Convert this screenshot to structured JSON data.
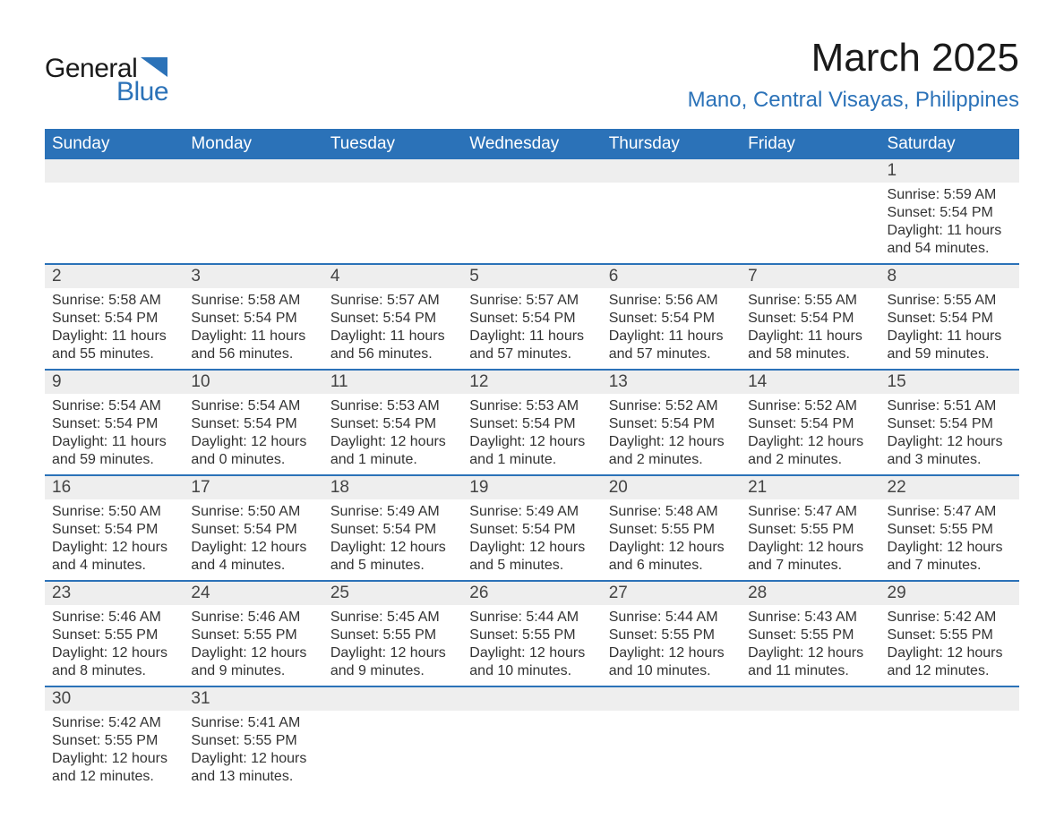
{
  "logo": {
    "text_general": "General",
    "text_blue": "Blue",
    "shape_color": "#2b72b8"
  },
  "title": "March 2025",
  "location": "Mano, Central Visayas, Philippines",
  "colors": {
    "header_bg": "#2b72b8",
    "header_text": "#ffffff",
    "daynum_bg": "#eeeeee",
    "border": "#2b72b8",
    "text": "#333333"
  },
  "weekdays": [
    "Sunday",
    "Monday",
    "Tuesday",
    "Wednesday",
    "Thursday",
    "Friday",
    "Saturday"
  ],
  "weeks": [
    [
      {
        "empty": true
      },
      {
        "empty": true
      },
      {
        "empty": true
      },
      {
        "empty": true
      },
      {
        "empty": true
      },
      {
        "empty": true
      },
      {
        "day": "1",
        "sunrise": "Sunrise: 5:59 AM",
        "sunset": "Sunset: 5:54 PM",
        "daylight1": "Daylight: 11 hours",
        "daylight2": "and 54 minutes."
      }
    ],
    [
      {
        "day": "2",
        "sunrise": "Sunrise: 5:58 AM",
        "sunset": "Sunset: 5:54 PM",
        "daylight1": "Daylight: 11 hours",
        "daylight2": "and 55 minutes."
      },
      {
        "day": "3",
        "sunrise": "Sunrise: 5:58 AM",
        "sunset": "Sunset: 5:54 PM",
        "daylight1": "Daylight: 11 hours",
        "daylight2": "and 56 minutes."
      },
      {
        "day": "4",
        "sunrise": "Sunrise: 5:57 AM",
        "sunset": "Sunset: 5:54 PM",
        "daylight1": "Daylight: 11 hours",
        "daylight2": "and 56 minutes."
      },
      {
        "day": "5",
        "sunrise": "Sunrise: 5:57 AM",
        "sunset": "Sunset: 5:54 PM",
        "daylight1": "Daylight: 11 hours",
        "daylight2": "and 57 minutes."
      },
      {
        "day": "6",
        "sunrise": "Sunrise: 5:56 AM",
        "sunset": "Sunset: 5:54 PM",
        "daylight1": "Daylight: 11 hours",
        "daylight2": "and 57 minutes."
      },
      {
        "day": "7",
        "sunrise": "Sunrise: 5:55 AM",
        "sunset": "Sunset: 5:54 PM",
        "daylight1": "Daylight: 11 hours",
        "daylight2": "and 58 minutes."
      },
      {
        "day": "8",
        "sunrise": "Sunrise: 5:55 AM",
        "sunset": "Sunset: 5:54 PM",
        "daylight1": "Daylight: 11 hours",
        "daylight2": "and 59 minutes."
      }
    ],
    [
      {
        "day": "9",
        "sunrise": "Sunrise: 5:54 AM",
        "sunset": "Sunset: 5:54 PM",
        "daylight1": "Daylight: 11 hours",
        "daylight2": "and 59 minutes."
      },
      {
        "day": "10",
        "sunrise": "Sunrise: 5:54 AM",
        "sunset": "Sunset: 5:54 PM",
        "daylight1": "Daylight: 12 hours",
        "daylight2": "and 0 minutes."
      },
      {
        "day": "11",
        "sunrise": "Sunrise: 5:53 AM",
        "sunset": "Sunset: 5:54 PM",
        "daylight1": "Daylight: 12 hours",
        "daylight2": "and 1 minute."
      },
      {
        "day": "12",
        "sunrise": "Sunrise: 5:53 AM",
        "sunset": "Sunset: 5:54 PM",
        "daylight1": "Daylight: 12 hours",
        "daylight2": "and 1 minute."
      },
      {
        "day": "13",
        "sunrise": "Sunrise: 5:52 AM",
        "sunset": "Sunset: 5:54 PM",
        "daylight1": "Daylight: 12 hours",
        "daylight2": "and 2 minutes."
      },
      {
        "day": "14",
        "sunrise": "Sunrise: 5:52 AM",
        "sunset": "Sunset: 5:54 PM",
        "daylight1": "Daylight: 12 hours",
        "daylight2": "and 2 minutes."
      },
      {
        "day": "15",
        "sunrise": "Sunrise: 5:51 AM",
        "sunset": "Sunset: 5:54 PM",
        "daylight1": "Daylight: 12 hours",
        "daylight2": "and 3 minutes."
      }
    ],
    [
      {
        "day": "16",
        "sunrise": "Sunrise: 5:50 AM",
        "sunset": "Sunset: 5:54 PM",
        "daylight1": "Daylight: 12 hours",
        "daylight2": "and 4 minutes."
      },
      {
        "day": "17",
        "sunrise": "Sunrise: 5:50 AM",
        "sunset": "Sunset: 5:54 PM",
        "daylight1": "Daylight: 12 hours",
        "daylight2": "and 4 minutes."
      },
      {
        "day": "18",
        "sunrise": "Sunrise: 5:49 AM",
        "sunset": "Sunset: 5:54 PM",
        "daylight1": "Daylight: 12 hours",
        "daylight2": "and 5 minutes."
      },
      {
        "day": "19",
        "sunrise": "Sunrise: 5:49 AM",
        "sunset": "Sunset: 5:54 PM",
        "daylight1": "Daylight: 12 hours",
        "daylight2": "and 5 minutes."
      },
      {
        "day": "20",
        "sunrise": "Sunrise: 5:48 AM",
        "sunset": "Sunset: 5:55 PM",
        "daylight1": "Daylight: 12 hours",
        "daylight2": "and 6 minutes."
      },
      {
        "day": "21",
        "sunrise": "Sunrise: 5:47 AM",
        "sunset": "Sunset: 5:55 PM",
        "daylight1": "Daylight: 12 hours",
        "daylight2": "and 7 minutes."
      },
      {
        "day": "22",
        "sunrise": "Sunrise: 5:47 AM",
        "sunset": "Sunset: 5:55 PM",
        "daylight1": "Daylight: 12 hours",
        "daylight2": "and 7 minutes."
      }
    ],
    [
      {
        "day": "23",
        "sunrise": "Sunrise: 5:46 AM",
        "sunset": "Sunset: 5:55 PM",
        "daylight1": "Daylight: 12 hours",
        "daylight2": "and 8 minutes."
      },
      {
        "day": "24",
        "sunrise": "Sunrise: 5:46 AM",
        "sunset": "Sunset: 5:55 PM",
        "daylight1": "Daylight: 12 hours",
        "daylight2": "and 9 minutes."
      },
      {
        "day": "25",
        "sunrise": "Sunrise: 5:45 AM",
        "sunset": "Sunset: 5:55 PM",
        "daylight1": "Daylight: 12 hours",
        "daylight2": "and 9 minutes."
      },
      {
        "day": "26",
        "sunrise": "Sunrise: 5:44 AM",
        "sunset": "Sunset: 5:55 PM",
        "daylight1": "Daylight: 12 hours",
        "daylight2": "and 10 minutes."
      },
      {
        "day": "27",
        "sunrise": "Sunrise: 5:44 AM",
        "sunset": "Sunset: 5:55 PM",
        "daylight1": "Daylight: 12 hours",
        "daylight2": "and 10 minutes."
      },
      {
        "day": "28",
        "sunrise": "Sunrise: 5:43 AM",
        "sunset": "Sunset: 5:55 PM",
        "daylight1": "Daylight: 12 hours",
        "daylight2": "and 11 minutes."
      },
      {
        "day": "29",
        "sunrise": "Sunrise: 5:42 AM",
        "sunset": "Sunset: 5:55 PM",
        "daylight1": "Daylight: 12 hours",
        "daylight2": "and 12 minutes."
      }
    ],
    [
      {
        "day": "30",
        "sunrise": "Sunrise: 5:42 AM",
        "sunset": "Sunset: 5:55 PM",
        "daylight1": "Daylight: 12 hours",
        "daylight2": "and 12 minutes."
      },
      {
        "day": "31",
        "sunrise": "Sunrise: 5:41 AM",
        "sunset": "Sunset: 5:55 PM",
        "daylight1": "Daylight: 12 hours",
        "daylight2": "and 13 minutes."
      },
      {
        "empty": true
      },
      {
        "empty": true
      },
      {
        "empty": true
      },
      {
        "empty": true
      },
      {
        "empty": true
      }
    ]
  ]
}
